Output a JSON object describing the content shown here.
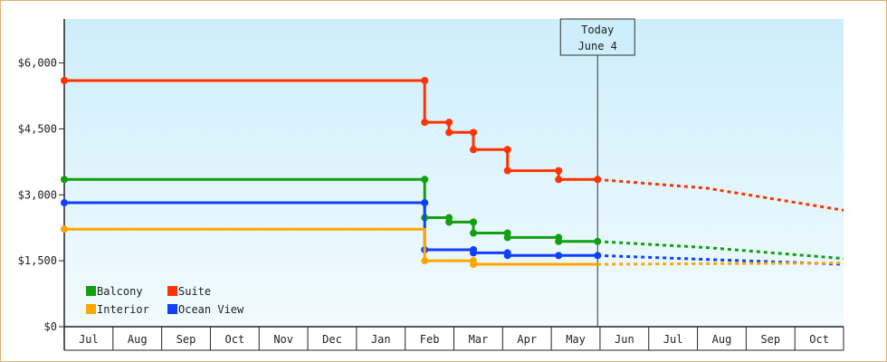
{
  "chart_data": {
    "type": "line",
    "subtype": "step",
    "background_gradient": [
      "#cdeefa",
      "#f2fbfe"
    ],
    "y_ticks": [
      {
        "value": 0,
        "label": "$0"
      },
      {
        "value": 1500,
        "label": "$1,500"
      },
      {
        "value": 3000,
        "label": "$3,000"
      },
      {
        "value": 4500,
        "label": "$4,500"
      },
      {
        "value": 6000,
        "label": "$6,000"
      }
    ],
    "ylim": [
      0,
      7000
    ],
    "x_range": [
      0,
      16
    ],
    "month_labels": [
      "Jul",
      "Aug",
      "Sep",
      "Oct",
      "Nov",
      "Dec",
      "Jan",
      "Feb",
      "Mar",
      "Apr",
      "May",
      "Jun",
      "Jul",
      "Aug",
      "Sep",
      "Oct"
    ],
    "today": {
      "line1": "Today",
      "line2": "June 4",
      "x": 10.95
    },
    "legend": [
      {
        "name": "Balcony",
        "color": "#11a011"
      },
      {
        "name": "Suite",
        "color": "#ff3300"
      },
      {
        "name": "Interior",
        "color": "#ffa600"
      },
      {
        "name": "Ocean View",
        "color": "#1040ff"
      }
    ],
    "series": [
      {
        "name": "Suite",
        "color": "#ff3300",
        "points": [
          [
            0,
            5600
          ],
          [
            7.4,
            5600
          ],
          [
            7.4,
            4650
          ],
          [
            7.9,
            4650
          ],
          [
            7.9,
            4420
          ],
          [
            8.4,
            4420
          ],
          [
            8.4,
            4030
          ],
          [
            9.1,
            4030
          ],
          [
            9.1,
            3550
          ],
          [
            10.15,
            3550
          ],
          [
            10.15,
            3350
          ],
          [
            10.95,
            3350
          ]
        ],
        "markers": [
          [
            0,
            5600
          ],
          [
            7.4,
            5600
          ],
          [
            7.4,
            4650
          ],
          [
            7.9,
            4650
          ],
          [
            7.9,
            4420
          ],
          [
            8.4,
            4420
          ],
          [
            8.4,
            4030
          ],
          [
            9.1,
            4030
          ],
          [
            9.1,
            3550
          ],
          [
            10.15,
            3550
          ],
          [
            10.15,
            3350
          ],
          [
            10.95,
            3350
          ]
        ],
        "forecast": [
          [
            10.95,
            3350
          ],
          [
            13.2,
            3150
          ],
          [
            16,
            2650
          ]
        ]
      },
      {
        "name": "Balcony",
        "color": "#11a011",
        "points": [
          [
            0,
            3350
          ],
          [
            7.4,
            3350
          ],
          [
            7.4,
            2480
          ],
          [
            7.9,
            2480
          ],
          [
            7.9,
            2380
          ],
          [
            8.4,
            2380
          ],
          [
            8.4,
            2130
          ],
          [
            9.1,
            2130
          ],
          [
            9.1,
            2030
          ],
          [
            10.15,
            2030
          ],
          [
            10.15,
            1940
          ],
          [
            10.95,
            1940
          ]
        ],
        "markers": [
          [
            0,
            3350
          ],
          [
            7.4,
            3350
          ],
          [
            7.4,
            2820
          ],
          [
            7.4,
            2480
          ],
          [
            7.9,
            2480
          ],
          [
            7.9,
            2380
          ],
          [
            8.4,
            2380
          ],
          [
            8.4,
            2130
          ],
          [
            9.1,
            2130
          ],
          [
            9.1,
            2030
          ],
          [
            10.15,
            2030
          ],
          [
            10.15,
            1940
          ],
          [
            10.95,
            1940
          ]
        ],
        "forecast": [
          [
            10.95,
            1940
          ],
          [
            13.2,
            1800
          ],
          [
            16,
            1550
          ]
        ]
      },
      {
        "name": "Ocean View",
        "color": "#1040ff",
        "points": [
          [
            0,
            2820
          ],
          [
            7.4,
            2820
          ],
          [
            7.4,
            1750
          ],
          [
            8.4,
            1750
          ],
          [
            8.4,
            1680
          ],
          [
            9.1,
            1680
          ],
          [
            9.1,
            1620
          ],
          [
            10.95,
            1620
          ]
        ],
        "markers": [
          [
            0,
            2820
          ],
          [
            7.4,
            2820
          ],
          [
            7.4,
            1750
          ],
          [
            8.4,
            1750
          ],
          [
            8.4,
            1680
          ],
          [
            9.1,
            1680
          ],
          [
            9.1,
            1620
          ],
          [
            10.15,
            1620
          ],
          [
            10.95,
            1620
          ]
        ],
        "forecast": [
          [
            10.95,
            1620
          ],
          [
            13.2,
            1530
          ],
          [
            16,
            1420
          ]
        ]
      },
      {
        "name": "Interior",
        "color": "#ffa600",
        "points": [
          [
            0,
            2220
          ],
          [
            7.4,
            2220
          ],
          [
            7.4,
            1500
          ],
          [
            8.4,
            1500
          ],
          [
            8.4,
            1420
          ],
          [
            10.95,
            1420
          ]
        ],
        "markers": [
          [
            0,
            2220
          ],
          [
            7.4,
            1500
          ],
          [
            8.4,
            1500
          ],
          [
            8.4,
            1420
          ]
        ],
        "forecast": [
          [
            10.95,
            1420
          ],
          [
            16,
            1450
          ]
        ]
      }
    ]
  }
}
